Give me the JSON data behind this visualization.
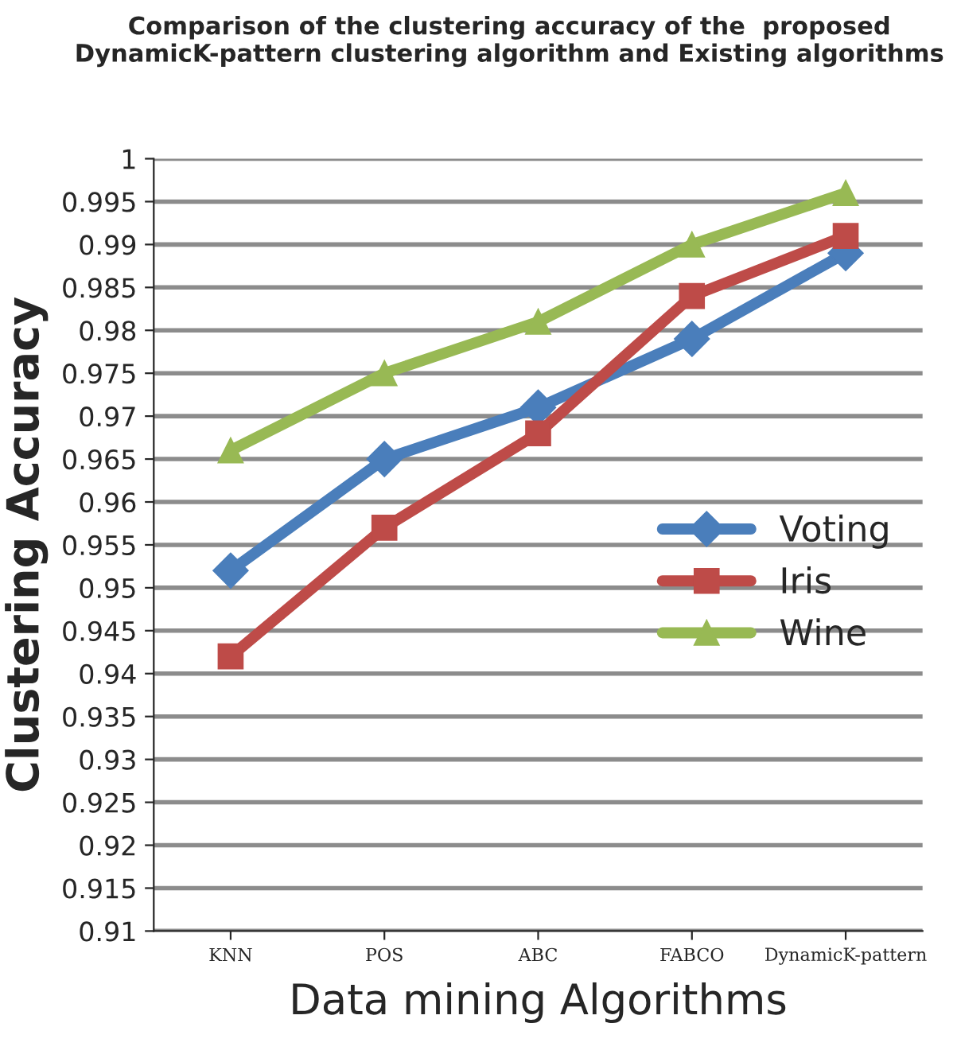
{
  "chart_data": {
    "type": "line",
    "title": "Comparison of the clustering accuracy of the  proposed DynamicK-pattern clustering algorithm and Existing algorithms",
    "xlabel": "Data mining Algorithms",
    "ylabel": "Clustering Accuracy",
    "categories": [
      "KNN",
      "POS",
      "ABC",
      "FABCO",
      "DynamicK-pattern"
    ],
    "series": [
      {
        "name": "Voting",
        "color": "#4a7ebb",
        "marker": "diamond",
        "values": [
          0.952,
          0.965,
          0.971,
          0.979,
          0.989
        ]
      },
      {
        "name": "Iris",
        "color": "#be4b48",
        "marker": "square",
        "values": [
          0.942,
          0.957,
          0.968,
          0.984,
          0.991
        ]
      },
      {
        "name": "Wine",
        "color": "#98b954",
        "marker": "triangle",
        "values": [
          0.966,
          0.975,
          0.981,
          0.99,
          0.996
        ]
      }
    ],
    "ylim": [
      0.91,
      1.0
    ],
    "yticks": [
      0.91,
      0.915,
      0.92,
      0.925,
      0.93,
      0.935,
      0.94,
      0.945,
      0.95,
      0.955,
      0.96,
      0.965,
      0.97,
      0.975,
      0.98,
      0.985,
      0.99,
      0.995,
      {
        "value": 1.0,
        "label": "1"
      }
    ],
    "grid": "y",
    "legend": "center right",
    "line_style": "solid"
  }
}
